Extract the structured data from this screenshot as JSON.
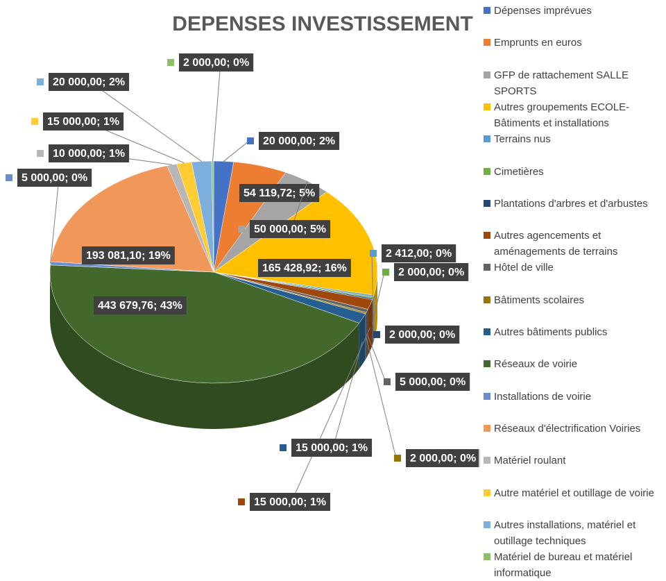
{
  "chart_data": {
    "type": "pie",
    "title": "DEPENSES INVESTISSEMENT",
    "categories": [
      "Dépenses imprévues",
      "Emprunts en euros",
      "GFP de rattachement SALLE SPORTS",
      "Autres groupements ECOLE-Bâtiments et installations",
      "Terrains nus",
      "Cimetières",
      "Plantations d'arbres et d'arbustes",
      "Autres agencements et aménagements de terrains",
      "Hôtel de ville",
      "Bâtiments scolaires",
      "Autres bâtiments publics",
      "Réseaux de voirie",
      "Installations de voirie",
      "Réseaux d'électrification Voiries",
      "Matériel roulant",
      "Autre matériel et outillage de voirie",
      "Autres installations, matériel et outillage techniques",
      "Matériel de bureau et matériel informatique"
    ],
    "values": [
      20000,
      54119.72,
      50000,
      165428.92,
      2412,
      2000,
      2000,
      15000,
      5000,
      2000,
      15000,
      443679.76,
      5000,
      193081.1,
      10000,
      15000,
      20000,
      2000
    ],
    "value_labels": [
      "20 000,00; 2%",
      "54 119,72; 5%",
      "50 000,00; 5%",
      "165 428,92; 16%",
      "2 412,00; 0%",
      "2 000,00; 0%",
      "2 000,00; 0%",
      "15 000,00; 1%",
      "5 000,00; 0%",
      "2 000,00; 0%",
      "15 000,00; 1%",
      "443 679,76; 43%",
      "5 000,00; 0%",
      "193 081,10; 19%",
      "10 000,00; 1%",
      "15 000,00; 1%",
      "20 000,00; 2%",
      "2 000,00; 0%"
    ],
    "colors": [
      "#4472c4",
      "#ed7d31",
      "#a5a5a5",
      "#ffc000",
      "#5b9bd5",
      "#70ad47",
      "#264478",
      "#9e480e",
      "#636363",
      "#997300",
      "#255e91",
      "#43682b",
      "#698ed0",
      "#f1975a",
      "#b7b7b7",
      "#ffcd33",
      "#7cafdd",
      "#8cc168"
    ],
    "legend": "right"
  }
}
